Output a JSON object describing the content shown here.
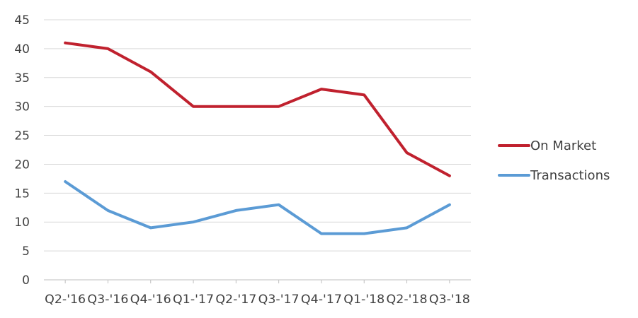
{
  "chart_data": {
    "type": "line",
    "title": "",
    "xlabel": "",
    "ylabel": "",
    "categories": [
      "Q2-'16",
      "Q3-'16",
      "Q4-'16",
      "Q1-'17",
      "Q2-'17",
      "Q3-'17",
      "Q4-'17",
      "Q1-'18",
      "Q2-'18",
      "Q3-'18"
    ],
    "ylim": [
      0,
      45
    ],
    "yticks": [
      0,
      5,
      10,
      15,
      20,
      25,
      30,
      35,
      40,
      45
    ],
    "grid": true,
    "legend_position": "right",
    "series": [
      {
        "name": "On Market",
        "color": "#c0212e",
        "values": [
          41,
          40,
          36,
          30,
          30,
          30,
          33,
          32,
          22,
          18
        ]
      },
      {
        "name": "Transactions",
        "color": "#5b9bd5",
        "values": [
          17,
          12,
          9,
          10,
          12,
          13,
          8,
          8,
          9,
          13
        ]
      }
    ]
  }
}
